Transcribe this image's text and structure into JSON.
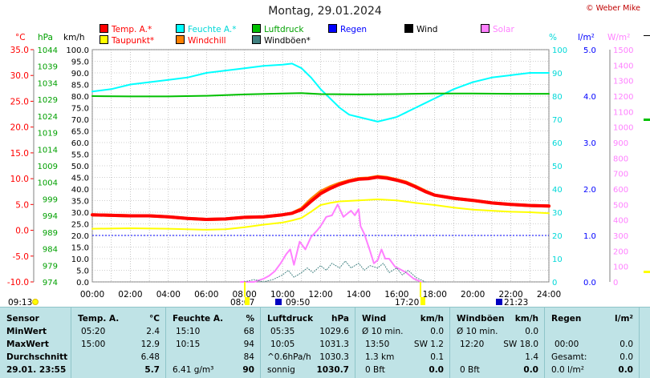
{
  "title": "Montag, 29.01.2024",
  "copyright": "© Weber Mike",
  "colors": {
    "temp": "#ff0000",
    "dew": "#ffff00",
    "humidity": "#00ffff",
    "windchill": "#ff8000",
    "pressure": "#00c000",
    "windgust": "#408080",
    "rain": "#0000ff",
    "wind": "#000000",
    "solar": "#ff80ff"
  },
  "legend": [
    {
      "label": "Temp. A.*",
      "color": "#ff0000",
      "text_color": "#ff0000"
    },
    {
      "label": "Feuchte A.*",
      "color": "#00ffff",
      "text_color": "#00d8d8"
    },
    {
      "label": "Luftdruck",
      "color": "#00c000",
      "text_color": "#00a000"
    },
    {
      "label": "Regen",
      "color": "#0000ff",
      "text_color": "#0000ff"
    },
    {
      "label": "Wind",
      "color": "#000000",
      "text_color": "#000000"
    },
    {
      "label": "Solar",
      "color": "#ff80ff",
      "text_color": "#ff80ff"
    },
    {
      "label": "Taupunkt*",
      "color": "#ffff00",
      "text_color": "#ff0000"
    },
    {
      "label": "Windchill",
      "color": "#ff8000",
      "text_color": "#ff0000"
    },
    {
      "label": "Windböen*",
      "color": "#408080",
      "text_color": "#000000"
    }
  ],
  "axis_units": {
    "temp": "°C",
    "pressure": "hPa",
    "wind": "km/h",
    "humidity": "%",
    "rain": "l/m²",
    "solar": "W/m²"
  },
  "chart_data": {
    "type": "line",
    "x_labels": [
      "00:00",
      "02:00",
      "04:00",
      "06:00",
      "08:00",
      "10:00",
      "12:00",
      "14:00",
      "16:00",
      "18:00",
      "20:00",
      "22:00",
      "24:00"
    ],
    "xlim": [
      0,
      24
    ],
    "axes": {
      "temp": {
        "ylim": [
          -10,
          35
        ],
        "ticks": [
          "35.0",
          "30.0",
          "25.0",
          "20.0",
          "15.0",
          "10.0",
          "5.0",
          "0.0",
          "-5.0",
          "-10.0"
        ]
      },
      "pressure": {
        "ylim": [
          974,
          1044
        ],
        "ticks": [
          "1044",
          "1039",
          "1034",
          "1029",
          "1024",
          "1019",
          "1014",
          "1009",
          "1004",
          "999",
          "994",
          "989",
          "984",
          "979",
          "974"
        ]
      },
      "wind": {
        "ylim": [
          0,
          100
        ],
        "ticks": [
          "100.0",
          "95.0",
          "90.0",
          "85.0",
          "80.0",
          "75.0",
          "70.0",
          "65.0",
          "60.0",
          "55.0",
          "50.0",
          "45.0",
          "40.0",
          "35.0",
          "30.0",
          "25.0",
          "20.0",
          "15.0",
          "10.0",
          "5.0",
          "0.0"
        ]
      },
      "humidity": {
        "ylim": [
          0,
          100
        ],
        "ticks": [
          "100",
          "90",
          "80",
          "70",
          "60",
          "50",
          "40",
          "30",
          "20",
          "10",
          "0"
        ]
      },
      "rain": {
        "ylim": [
          0,
          5
        ],
        "ticks": [
          "5.0",
          "4.0",
          "3.0",
          "2.0",
          "1.0",
          "0.0"
        ]
      },
      "solar": {
        "ylim": [
          0,
          1500
        ],
        "ticks": [
          "1500",
          "1400",
          "1300",
          "1200",
          "1100",
          "1000",
          "900",
          "800",
          "700",
          "600",
          "500",
          "400",
          "300",
          "200",
          "100",
          "0"
        ]
      }
    },
    "series": [
      {
        "name": "Feuchte A.",
        "axis": "humidity",
        "color": "#00ffff",
        "x": [
          0,
          1,
          2,
          3,
          4,
          5,
          6,
          7,
          8,
          9,
          10,
          10.5,
          11,
          11.5,
          12,
          12.5,
          13,
          13.5,
          14,
          14.5,
          15,
          15.5,
          16,
          16.5,
          17,
          17.5,
          18,
          19,
          20,
          21,
          22,
          23,
          24
        ],
        "y": [
          82,
          83,
          85,
          86,
          87,
          88,
          90,
          91,
          92,
          93,
          93.5,
          94,
          92,
          88,
          83,
          79,
          75,
          72,
          71,
          70,
          69,
          70,
          71,
          73,
          75,
          77,
          79,
          83,
          86,
          88,
          89,
          90,
          90
        ]
      },
      {
        "name": "Luftdruck",
        "axis": "pressure",
        "color": "#00c000",
        "x": [
          0,
          2,
          4,
          6,
          8,
          10,
          11,
          12,
          14,
          16,
          18,
          20,
          22,
          24
        ],
        "y": [
          1030.0,
          1029.9,
          1029.9,
          1030.1,
          1030.5,
          1030.8,
          1030.9,
          1030.6,
          1030.5,
          1030.6,
          1030.8,
          1030.8,
          1030.7,
          1030.7
        ]
      },
      {
        "name": "Windchill",
        "axis": "temp",
        "color": "#ff8000",
        "x": [
          0,
          1,
          2,
          3,
          4,
          5,
          6,
          7,
          8,
          9,
          10,
          10.5,
          11,
          11.5,
          12,
          12.5,
          13,
          13.5,
          14,
          14.5,
          15,
          15.5,
          16,
          16.5,
          17,
          17.5,
          18,
          19,
          20,
          21,
          22,
          23,
          24
        ],
        "y": [
          3.0,
          2.9,
          2.8,
          2.8,
          2.6,
          2.3,
          2.1,
          2.2,
          2.5,
          2.6,
          3.0,
          3.3,
          4.2,
          6.0,
          7.5,
          8.4,
          9.1,
          9.6,
          10.0,
          10.1,
          10.4,
          10.2,
          9.8,
          9.3,
          8.5,
          7.6,
          6.8,
          6.2,
          5.8,
          5.3,
          5.0,
          4.8,
          4.7
        ]
      },
      {
        "name": "Temp. A.",
        "axis": "temp",
        "color": "#ff0000",
        "x": [
          0,
          1,
          2,
          3,
          4,
          5,
          6,
          7,
          8,
          9,
          10,
          10.5,
          11,
          11.5,
          12,
          12.5,
          13,
          13.5,
          14,
          14.5,
          15,
          15.5,
          16,
          16.5,
          17,
          17.5,
          18,
          19,
          20,
          21,
          22,
          23,
          24
        ],
        "y": [
          3.0,
          2.9,
          2.8,
          2.8,
          2.6,
          2.3,
          2.1,
          2.2,
          2.5,
          2.6,
          3.0,
          3.3,
          4.0,
          5.6,
          7.1,
          8.1,
          8.9,
          9.5,
          9.9,
          10.0,
          10.3,
          10.1,
          9.7,
          9.2,
          8.4,
          7.5,
          6.8,
          6.2,
          5.8,
          5.3,
          5.0,
          4.8,
          4.7
        ]
      },
      {
        "name": "Taupunkt",
        "axis": "temp",
        "color": "#ffff00",
        "x": [
          0,
          2,
          4,
          6,
          7,
          8,
          9,
          10,
          10.5,
          11,
          11.5,
          12,
          12.5,
          13,
          14,
          15,
          16,
          17,
          18,
          19,
          20,
          21,
          22,
          23,
          24
        ],
        "y": [
          0.3,
          0.4,
          0.3,
          0.1,
          0.2,
          0.6,
          1.1,
          1.5,
          1.9,
          2.4,
          3.6,
          4.9,
          5.3,
          5.6,
          5.8,
          6.0,
          5.8,
          5.3,
          4.9,
          4.4,
          4.0,
          3.8,
          3.6,
          3.5,
          3.3
        ]
      },
      {
        "name": "Solar",
        "axis": "solar",
        "color": "#ff80ff",
        "x": [
          7.8,
          8.5,
          9,
          9.3,
          9.6,
          9.9,
          10.2,
          10.4,
          10.6,
          10.9,
          11.2,
          11.5,
          11.8,
          12.0,
          12.3,
          12.6,
          12.9,
          13.2,
          13.4,
          13.6,
          13.8,
          14.0,
          14.1,
          14.3,
          14.6,
          14.8,
          15.0,
          15.2,
          15.4,
          15.6,
          15.9,
          16.2,
          16.5,
          16.9,
          17.3
        ],
        "y": [
          0,
          0,
          20,
          40,
          70,
          120,
          180,
          210,
          110,
          260,
          210,
          290,
          330,
          360,
          420,
          430,
          500,
          420,
          440,
          460,
          430,
          470,
          360,
          310,
          200,
          120,
          140,
          210,
          150,
          150,
          100,
          80,
          60,
          20,
          0
        ]
      },
      {
        "name": "Windböen",
        "axis": "wind",
        "color": "#408080",
        "x": [
          8,
          8.5,
          9,
          9.5,
          10,
          10.3,
          10.6,
          11,
          11.3,
          11.6,
          12,
          12.3,
          12.6,
          13,
          13.3,
          13.6,
          14,
          14.3,
          14.6,
          15,
          15.3,
          15.6,
          16,
          16.3,
          16.6,
          17,
          17.5
        ],
        "y": [
          0,
          1,
          0,
          1,
          3,
          5,
          2,
          4,
          6,
          4,
          7,
          5,
          8,
          6,
          9,
          6,
          8,
          5,
          7,
          6,
          8,
          4,
          6,
          3,
          5,
          2,
          0
        ]
      }
    ],
    "rain_marker_value": 1.0
  },
  "timeline": {
    "start_time": "09:13",
    "sunrise": "08:07",
    "mark1": "09:50",
    "sunset": "17:20",
    "mark2": "21:23"
  },
  "stats": {
    "sensor": {
      "header": "Sensor",
      "rows": [
        "MinWert",
        "MaxWert",
        "Durchschnitt"
      ],
      "footer": "29.01. 23:55"
    },
    "temp": {
      "header": "Temp. A.",
      "unit": "°C",
      "rows": [
        [
          "05:20",
          "2.4"
        ],
        [
          "15:00",
          "12.9"
        ],
        [
          "",
          "6.48"
        ]
      ],
      "footer": "5.7"
    },
    "hum": {
      "header": "Feuchte A.",
      "unit": "%",
      "rows": [
        [
          "15:10",
          "68"
        ],
        [
          "10:15",
          "94"
        ],
        [
          "",
          "84"
        ]
      ],
      "footer_label": "6.41 g/m³",
      "footer": "90"
    },
    "press": {
      "header": "Luftdruck",
      "unit": "hPa",
      "rows": [
        [
          "05:35",
          "1029.6"
        ],
        [
          "10:05",
          "1031.3"
        ],
        [
          "^0.6hPa/h",
          "1030.3"
        ]
      ],
      "footer_label": "sonnig",
      "footer": "1030.7"
    },
    "wind": {
      "header": "Wind",
      "unit": "km/h",
      "rows": [
        [
          "Ø 10 min.",
          "0.0"
        ],
        [
          "13:50",
          "SW 1.2"
        ],
        [
          "1.3 km",
          "0.1"
        ]
      ],
      "footer_label": "0 Bft",
      "footer": "0.0"
    },
    "gust": {
      "header": "Windböen",
      "unit": "km/h",
      "rows": [
        [
          "Ø 10 min.",
          "0.0"
        ],
        [
          "12:20",
          "SW 18.0"
        ],
        [
          "",
          "1.4"
        ]
      ],
      "footer_label": "0 Bft",
      "footer": "0.0"
    },
    "rain": {
      "header": "Regen",
      "unit": "l/m²",
      "rows": [
        [
          "",
          ""
        ],
        [
          "00:00",
          "0.0"
        ],
        [
          "Gesamt:",
          "0.0"
        ]
      ],
      "footer_label": "0.0 l/m²",
      "footer": "0.0"
    }
  }
}
